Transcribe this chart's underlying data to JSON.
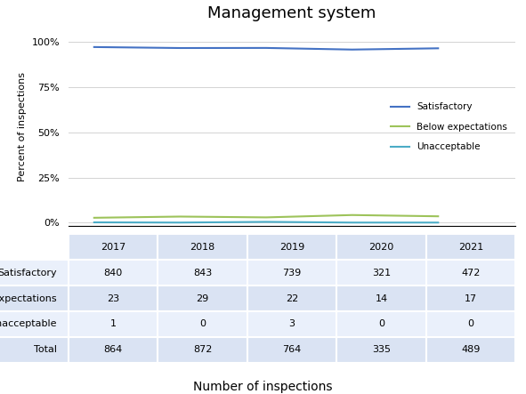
{
  "title": "Management system",
  "years": [
    2017,
    2018,
    2019,
    2020,
    2021
  ],
  "satisfactory": [
    840,
    843,
    739,
    321,
    472
  ],
  "below_expectations": [
    23,
    29,
    22,
    14,
    17
  ],
  "unacceptable": [
    1,
    0,
    3,
    0,
    0
  ],
  "totals": [
    864,
    872,
    764,
    335,
    489
  ],
  "colors": {
    "satisfactory": "#4472C4",
    "below_expectations": "#9DC35A",
    "unacceptable": "#4BACC6"
  },
  "ylabel": "Percent of inspections",
  "xlabel": "Number of inspections",
  "legend_labels": [
    "Satisfactory",
    "Below expectations",
    "Unacceptable"
  ],
  "table_rows": [
    "Satisfactory",
    "Below expectations",
    "Unacceptable",
    "Total"
  ],
  "table_bg_color": "#DAE3F3",
  "table_alt_color": "#EAF0FB"
}
